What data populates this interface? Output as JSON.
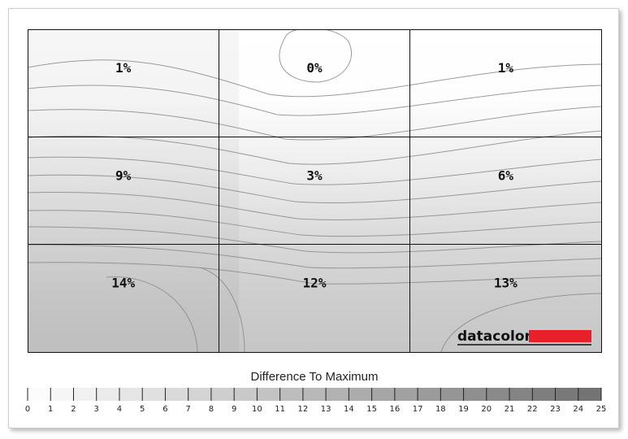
{
  "chart_data": {
    "type": "heatmap",
    "rows": 3,
    "cols": 3,
    "values": [
      [
        1,
        0,
        1
      ],
      [
        9,
        3,
        6
      ],
      [
        14,
        12,
        13
      ]
    ],
    "cell_labels": [
      [
        "1%",
        "0%",
        "1%"
      ],
      [
        "9%",
        "3%",
        "6%"
      ],
      [
        "14%",
        "12%",
        "13%"
      ]
    ],
    "unit": "%",
    "colorbar": {
      "title": "Difference To Maximum",
      "min": 0,
      "max": 25,
      "ticks": [
        "0",
        "1",
        "2",
        "3",
        "4",
        "5",
        "6",
        "7",
        "8",
        "9",
        "10",
        "11",
        "12",
        "13",
        "14",
        "15",
        "16",
        "17",
        "18",
        "19",
        "20",
        "21",
        "22",
        "23",
        "24",
        "25"
      ],
      "color_min": "#ffffff",
      "color_max": "#707070"
    },
    "contours": true,
    "grid": true
  },
  "brand": {
    "name": "datacolor",
    "accent_color": "#e8202a"
  }
}
